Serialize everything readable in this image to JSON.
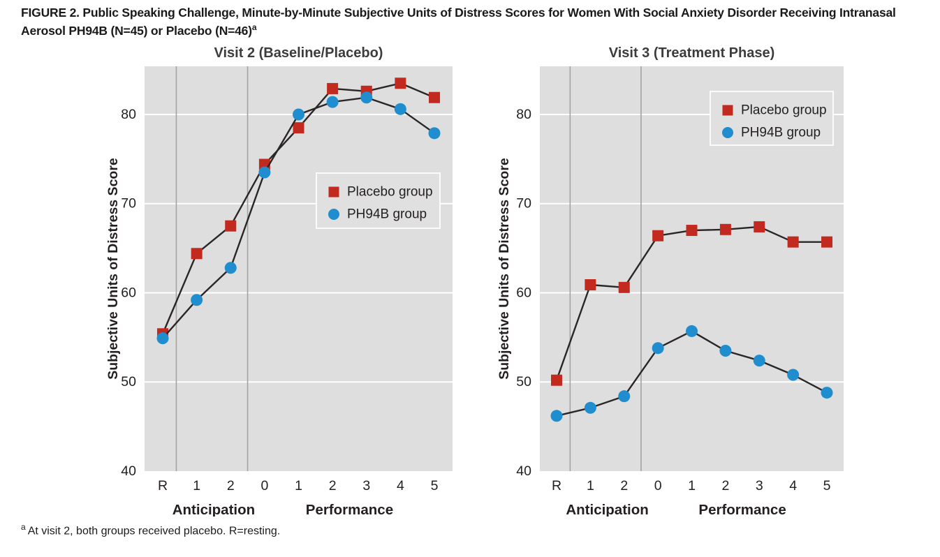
{
  "figure": {
    "title": "FIGURE 2. Public Speaking Challenge, Minute-by-Minute Subjective Units of Distress Scores for Women With Social Anxiety Disorder Receiving Intranasal Aerosol PH94B (N=45) or Placebo (N=46)",
    "title_superscript": "a",
    "footnote_marker": "a",
    "footnote_text": "At visit 2, both groups received placebo. R=resting."
  },
  "colors": {
    "placebo": "#c2291f",
    "ph94b": "#1f8dce",
    "plot_background": "#dedede",
    "gridline": "#ffffff",
    "divider": "#a3a3a3",
    "series_line": "#2b2626",
    "text": "#231f20",
    "legend_background": "#e0e0e0",
    "legend_border": "#fbfbfb"
  },
  "chart_data": [
    {
      "type": "line",
      "title": "Visit 2 (Baseline/Placebo)",
      "ylabel": "Subjective Units of Distress Score",
      "xlabel": "",
      "categories": [
        "R",
        "1",
        "2",
        "0",
        "1",
        "2",
        "3",
        "4",
        "5"
      ],
      "x_sections": [
        {
          "label": "Anticipation",
          "center_between": [
            1,
            2
          ]
        },
        {
          "label": "Performance",
          "center_between": [
            5,
            6
          ]
        }
      ],
      "dividers_after_index": [
        0,
        2
      ],
      "yticks": [
        40,
        50,
        60,
        70,
        80
      ],
      "ylim": [
        40,
        85.4
      ],
      "grid": true,
      "legend_position": "middle-right",
      "series": [
        {
          "name": "Placebo group",
          "marker": "square",
          "color_key": "placebo",
          "values": [
            55.4,
            64.4,
            67.5,
            74.4,
            78.5,
            82.9,
            82.6,
            83.5,
            81.9
          ]
        },
        {
          "name": "PH94B group",
          "marker": "circle",
          "color_key": "ph94b",
          "values": [
            54.9,
            59.2,
            62.8,
            73.5,
            80.0,
            81.4,
            81.9,
            80.6,
            77.9
          ]
        }
      ]
    },
    {
      "type": "line",
      "title": "Visit 3 (Treatment Phase)",
      "ylabel": "Subjective Units of Distress Score",
      "xlabel": "",
      "categories": [
        "R",
        "1",
        "2",
        "0",
        "1",
        "2",
        "3",
        "4",
        "5"
      ],
      "x_sections": [
        {
          "label": "Anticipation",
          "center_between": [
            1,
            2
          ]
        },
        {
          "label": "Performance",
          "center_between": [
            5,
            6
          ]
        }
      ],
      "dividers_after_index": [
        0,
        2
      ],
      "yticks": [
        40,
        50,
        60,
        70,
        80
      ],
      "ylim": [
        40,
        85.4
      ],
      "grid": true,
      "legend_position": "top-right",
      "series": [
        {
          "name": "Placebo group",
          "marker": "square",
          "color_key": "placebo",
          "values": [
            50.2,
            60.9,
            60.6,
            66.4,
            67.0,
            67.1,
            67.4,
            65.7,
            65.7
          ]
        },
        {
          "name": "PH94B group",
          "marker": "circle",
          "color_key": "ph94b",
          "values": [
            46.2,
            47.1,
            48.4,
            53.8,
            55.7,
            53.5,
            52.4,
            50.8,
            48.8
          ]
        }
      ]
    }
  ]
}
